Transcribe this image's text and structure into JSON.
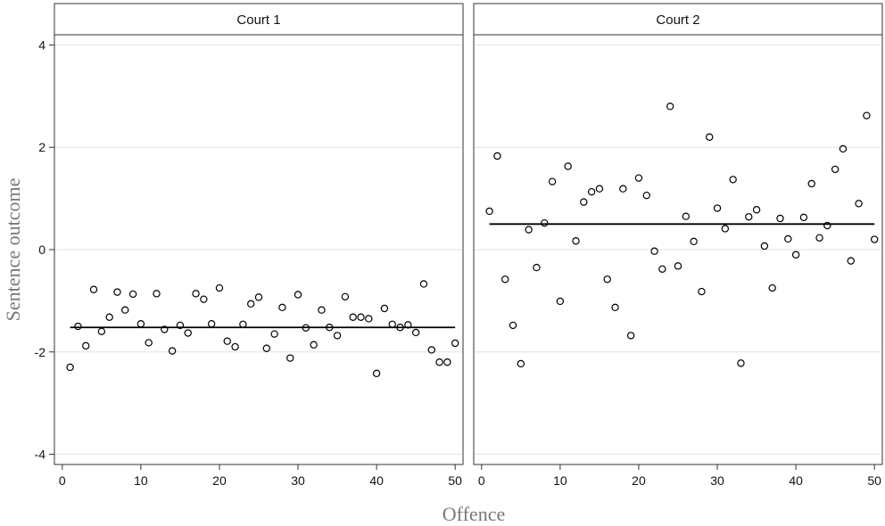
{
  "chart_data": {
    "type": "scatter",
    "ylabel": "Sentence outcome",
    "xlabel": "Offence",
    "ylim": [
      -4.2,
      4.2
    ],
    "xlim": [
      -1,
      51
    ],
    "yticks": [
      -4,
      -2,
      0,
      2,
      4
    ],
    "xticks": [
      0,
      10,
      20,
      30,
      40,
      50
    ],
    "grid": "horizontal",
    "colors": {
      "points": "#000000",
      "grid": "#e6e6e6",
      "line": "#000000"
    },
    "panels": [
      {
        "title": "Court 1",
        "fit_line": {
          "x": [
            1,
            50
          ],
          "y": [
            -1.52,
            -1.52
          ]
        },
        "x": [
          1,
          2,
          3,
          4,
          5,
          6,
          7,
          8,
          9,
          10,
          11,
          12,
          13,
          14,
          15,
          16,
          17,
          18,
          19,
          20,
          21,
          22,
          23,
          24,
          25,
          26,
          27,
          28,
          29,
          30,
          31,
          32,
          33,
          34,
          35,
          36,
          37,
          38,
          39,
          40,
          41,
          42,
          43,
          44,
          45,
          46,
          47,
          48,
          49,
          50
        ],
        "y": [
          -2.3,
          -1.5,
          -1.88,
          -0.78,
          -1.6,
          -1.32,
          -0.83,
          -1.18,
          -0.87,
          -1.45,
          -1.82,
          -0.86,
          -1.56,
          -1.98,
          -1.48,
          -1.63,
          -0.86,
          -0.97,
          -1.45,
          -0.75,
          -1.79,
          -1.9,
          -1.46,
          -1.06,
          -0.93,
          -1.93,
          -1.65,
          -1.13,
          -2.12,
          -0.88,
          -1.53,
          -1.86,
          -1.18,
          -1.52,
          -1.68,
          -0.92,
          -1.32,
          -1.32,
          -1.35,
          -2.42,
          -1.15,
          -1.46,
          -1.52,
          -1.47,
          -1.62,
          -0.67,
          -1.96,
          -2.2,
          -2.2,
          -1.83
        ]
      },
      {
        "title": "Court 2",
        "fit_line": {
          "x": [
            1,
            50
          ],
          "y": [
            0.5,
            0.5
          ]
        },
        "x": [
          1,
          2,
          3,
          4,
          5,
          6,
          7,
          8,
          9,
          10,
          11,
          12,
          13,
          14,
          15,
          16,
          17,
          18,
          19,
          20,
          21,
          22,
          23,
          24,
          25,
          26,
          27,
          28,
          29,
          30,
          31,
          32,
          33,
          34,
          35,
          36,
          37,
          38,
          39,
          40,
          41,
          42,
          43,
          44,
          45,
          46,
          47,
          48,
          49,
          50
        ],
        "y": [
          0.75,
          1.83,
          -0.58,
          -1.48,
          -2.23,
          0.39,
          -0.35,
          0.52,
          1.33,
          -1.01,
          1.63,
          0.17,
          0.93,
          1.13,
          1.19,
          -0.58,
          -1.13,
          1.19,
          -1.68,
          1.4,
          1.06,
          -0.03,
          -0.38,
          2.8,
          -0.32,
          0.65,
          0.16,
          -0.82,
          2.2,
          0.81,
          0.41,
          1.37,
          -2.22,
          0.64,
          0.78,
          0.07,
          -0.75,
          0.61,
          0.21,
          -0.1,
          0.63,
          1.29,
          0.23,
          0.47,
          1.57,
          1.97,
          -0.22,
          0.9,
          2.62,
          0.2
        ]
      }
    ]
  }
}
